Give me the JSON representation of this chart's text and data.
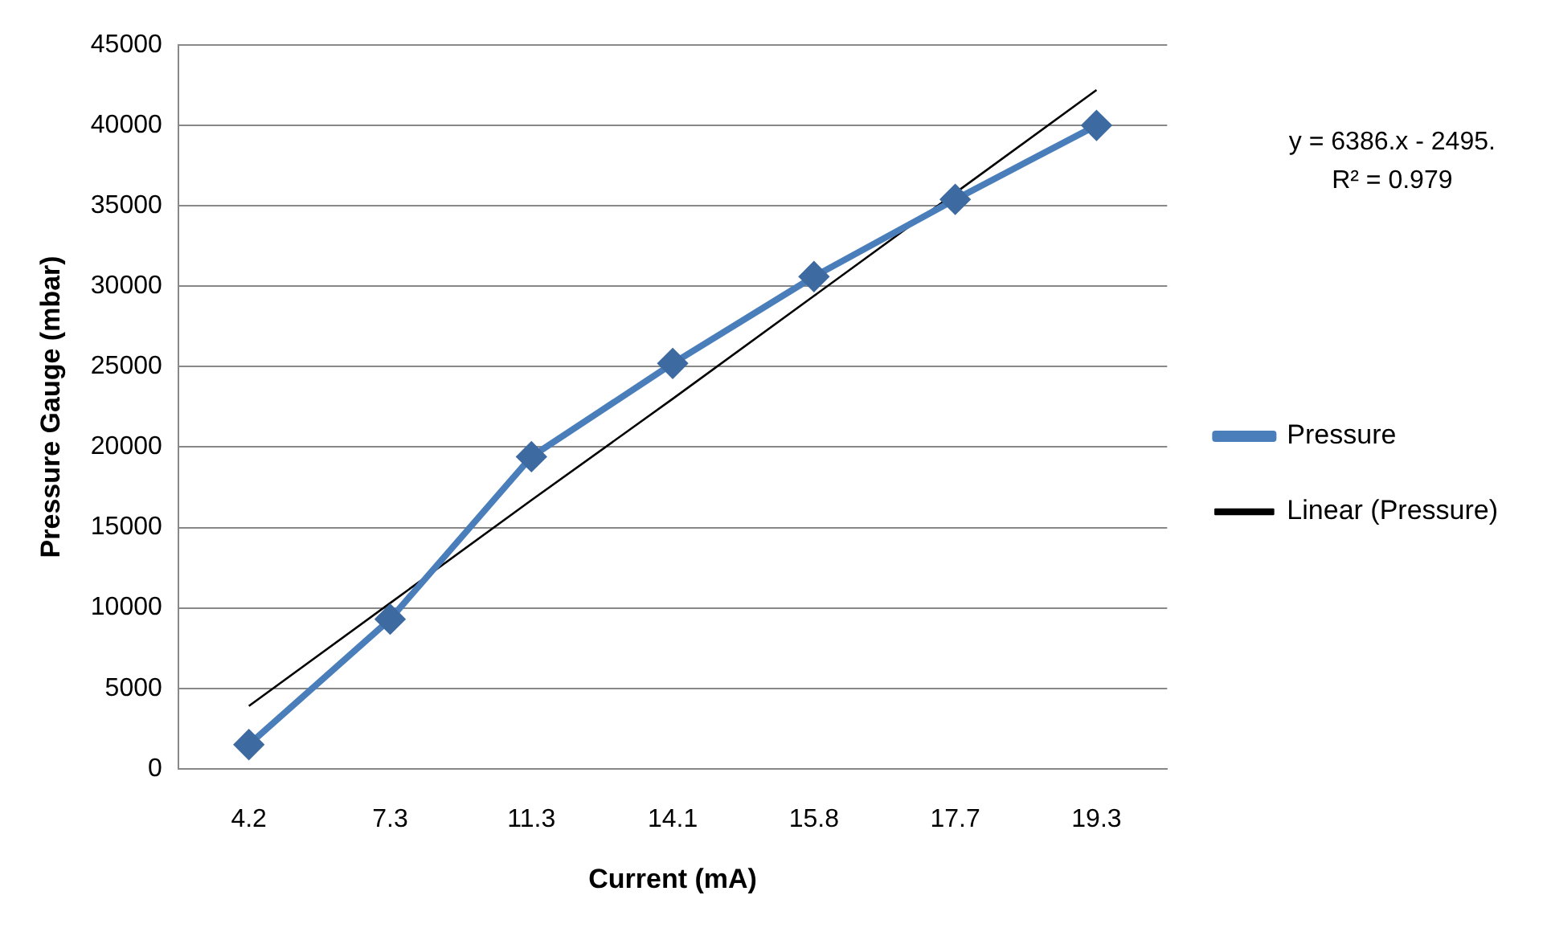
{
  "chart_data": {
    "type": "line",
    "xlabel": "Current (mA)",
    "ylabel": "Pressure Gauge (mbar)",
    "categories": [
      "4.2",
      "7.3",
      "11.3",
      "14.1",
      "15.8",
      "17.7",
      "19.3"
    ],
    "series": [
      {
        "name": "Pressure",
        "color": "#4a7ebb",
        "marker": "diamond",
        "values": [
          1500,
          9300,
          19400,
          25200,
          30600,
          35400,
          40000
        ]
      },
      {
        "name": "Linear (Pressure)",
        "color": "#000000",
        "marker": "none",
        "values": [
          3900,
          10300,
          16700,
          23000,
          29400,
          35800,
          42200
        ]
      }
    ],
    "ylim": [
      0,
      45000
    ],
    "yticks": [
      0,
      5000,
      10000,
      15000,
      20000,
      25000,
      30000,
      35000,
      40000,
      45000
    ],
    "grid": "y",
    "legend": "right",
    "annotations": [
      "y = 6386.x - 2495.",
      "R² = 0.979"
    ]
  }
}
